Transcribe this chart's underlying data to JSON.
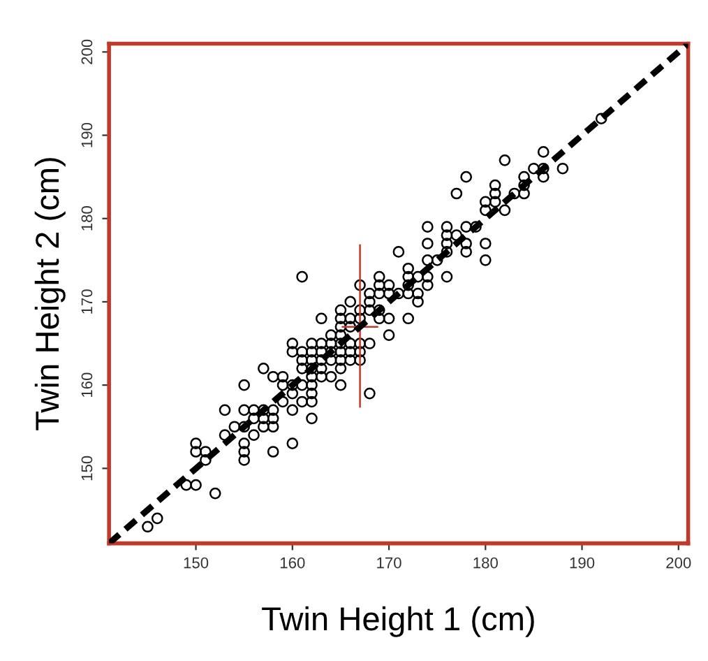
{
  "chart_data": {
    "type": "scatter",
    "xlabel": "Twin Height 1 (cm)",
    "ylabel": "Twin Height 2 (cm)",
    "xlim": [
      141,
      201
    ],
    "ylim": [
      141,
      201
    ],
    "xticks": [
      150,
      160,
      170,
      180,
      190,
      200
    ],
    "yticks": [
      150,
      160,
      170,
      180,
      190,
      200
    ],
    "grid": false,
    "series": [
      {
        "marker": "circle",
        "color": "#000000",
        "x": [
          145,
          146,
          149,
          150,
          152,
          150,
          150,
          151,
          151,
          153,
          153,
          154,
          155,
          155,
          155,
          155,
          155,
          155,
          156,
          156,
          156,
          157,
          157,
          157,
          157,
          158,
          158,
          158,
          158,
          158,
          159,
          159,
          159,
          160,
          160,
          160,
          160,
          160,
          160,
          161,
          161,
          161,
          161,
          161,
          161,
          162,
          162,
          162,
          162,
          162,
          162,
          162,
          162,
          162,
          163,
          163,
          163,
          163,
          163,
          163,
          164,
          164,
          164,
          164,
          164,
          165,
          165,
          165,
          165,
          165,
          165,
          165,
          165,
          165,
          166,
          166,
          166,
          166,
          166,
          166,
          167,
          167,
          167,
          167,
          167,
          167,
          168,
          168,
          168,
          168,
          168,
          169,
          169,
          169,
          169,
          169,
          170,
          170,
          170,
          170,
          171,
          171,
          172,
          172,
          172,
          172,
          172,
          173,
          173,
          173,
          174,
          174,
          174,
          174,
          174,
          175,
          176,
          176,
          176,
          176,
          176,
          177,
          177,
          178,
          178,
          178,
          178,
          179,
          180,
          180,
          180,
          180,
          181,
          181,
          181,
          182,
          182,
          183,
          184,
          184,
          184,
          185,
          186,
          186,
          186,
          188,
          192
        ],
        "values": [
          143,
          144,
          148,
          148,
          147,
          153,
          152,
          152,
          151,
          157,
          154,
          155,
          160,
          157,
          155,
          153,
          152,
          151,
          157,
          156,
          154,
          157,
          156,
          155,
          162,
          161,
          157,
          156,
          155,
          152,
          161,
          160,
          158,
          165,
          164,
          160,
          159,
          157,
          153,
          173,
          164,
          163,
          162,
          160,
          158,
          165,
          164,
          163,
          162,
          161,
          160,
          159,
          158,
          156,
          168,
          165,
          164,
          163,
          162,
          161,
          166,
          165,
          164,
          163,
          161,
          169,
          168,
          167,
          166,
          165,
          164,
          163,
          162,
          160,
          170,
          168,
          167,
          165,
          164,
          163,
          172,
          169,
          168,
          165,
          164,
          163,
          171,
          170,
          169,
          165,
          159,
          173,
          172,
          171,
          169,
          168,
          172,
          171,
          168,
          166,
          176,
          171,
          174,
          173,
          172,
          171,
          168,
          173,
          171,
          170,
          179,
          177,
          175,
          173,
          172,
          175,
          179,
          178,
          177,
          176,
          173,
          183,
          178,
          185,
          179,
          177,
          176,
          179,
          182,
          181,
          177,
          175,
          184,
          183,
          182,
          187,
          181,
          183,
          185,
          184,
          183,
          186,
          188,
          185,
          186,
          186,
          192
        ]
      },
      {
        "type": "line",
        "line_style": "solid",
        "color": "#c0392b",
        "x": [
          167,
          167
        ],
        "values": [
          157.4,
          176.8
        ]
      },
      {
        "type": "line",
        "line_style": "solid",
        "color": "#c0392b",
        "x": [
          165.2,
          168.8
        ],
        "values": [
          167,
          167
        ]
      },
      {
        "type": "line",
        "line_style": "dashed",
        "color": "#000000",
        "x": [
          141,
          201
        ],
        "values": [
          141,
          201
        ]
      }
    ]
  }
}
